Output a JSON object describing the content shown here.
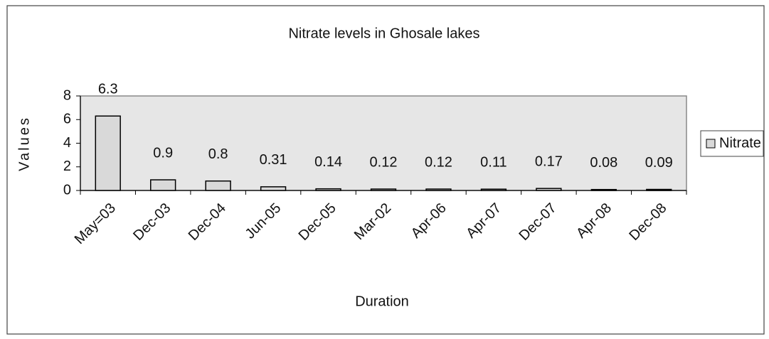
{
  "chart_data": {
    "type": "bar",
    "title": "Nitrate levels in Ghosale lakes",
    "xlabel": "Duration",
    "ylabel": "Values",
    "categories": [
      "May=03",
      "Dec-03",
      "Dec-04",
      "Jun-05",
      "Dec-05",
      "Mar-02",
      "Apr-06",
      "Apr-07",
      "Dec-07",
      "Apr-08",
      "Dec-08"
    ],
    "series": [
      {
        "name": "Nitrate",
        "color": "#d9d9d9",
        "values": [
          6.3,
          0.9,
          0.8,
          0.31,
          0.14,
          0.12,
          0.12,
          0.11,
          0.17,
          0.08,
          0.09
        ]
      }
    ],
    "ylim": [
      0,
      8
    ],
    "yticks": [
      0,
      2,
      4,
      6,
      8
    ],
    "grid": false,
    "legend": "right"
  }
}
